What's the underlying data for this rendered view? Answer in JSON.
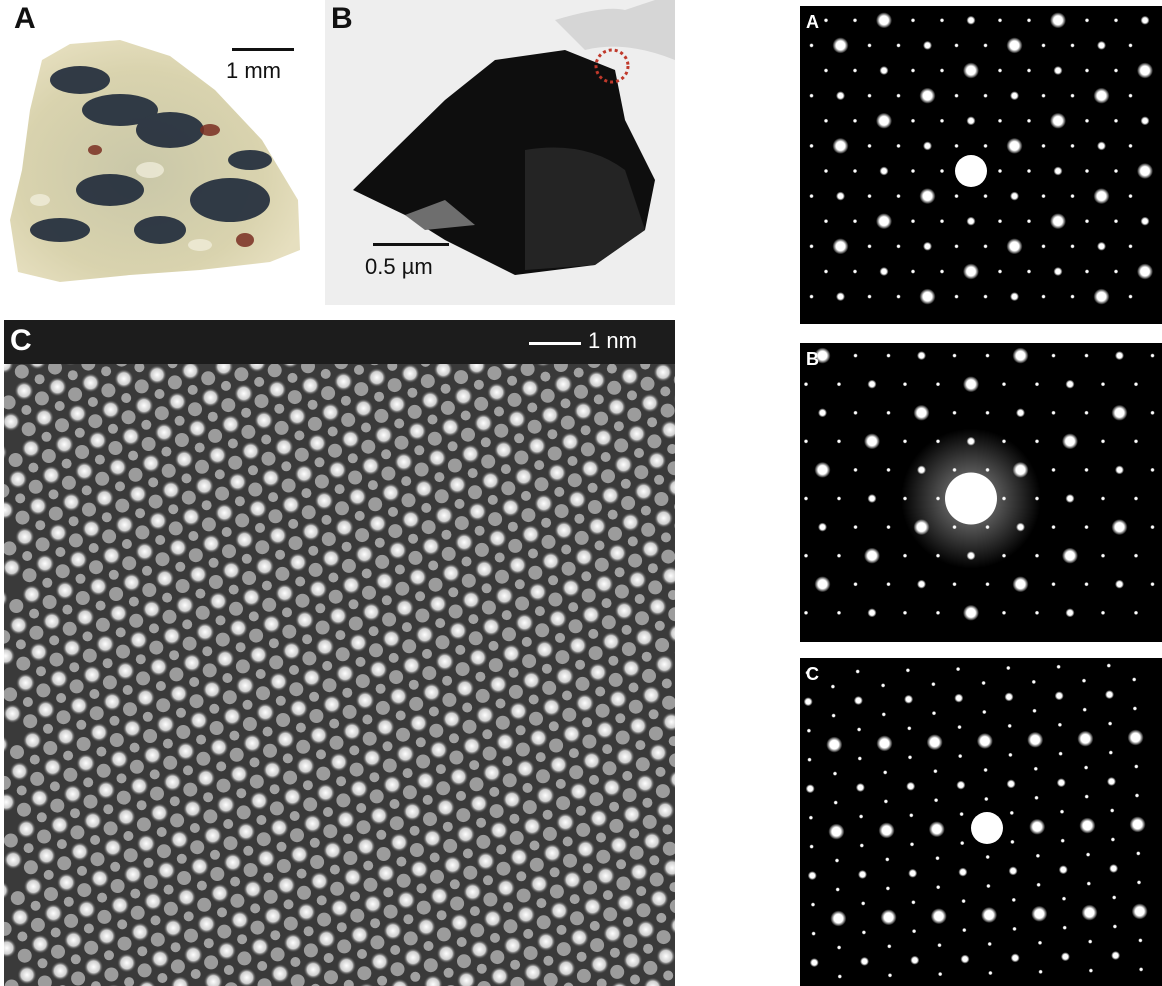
{
  "panels": {
    "a": {
      "label": "A",
      "scalebar": "1 mm"
    },
    "b": {
      "label": "B",
      "scalebar": "0.5 µm"
    },
    "c": {
      "label": "C",
      "scalebar": "1 nm"
    }
  },
  "diffraction": [
    {
      "label": "A"
    },
    {
      "label": "B"
    },
    {
      "label": "C"
    }
  ],
  "colors": {
    "background": "#ffffff",
    "dark_frame": "#1c1c1c",
    "diffraction_bg": "#000000",
    "selection_circle": "#c0392b"
  }
}
